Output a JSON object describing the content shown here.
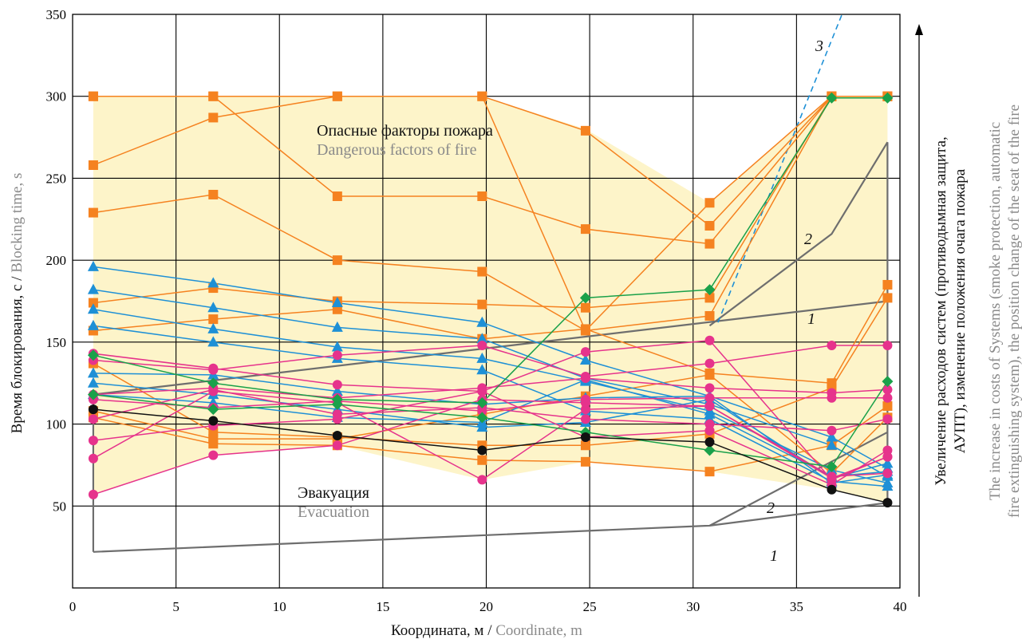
{
  "chart_data": {
    "type": "line",
    "xlim": [
      0,
      40
    ],
    "ylim": [
      0,
      350
    ],
    "x_ticks": [
      0,
      5,
      10,
      15,
      20,
      25,
      30,
      35,
      40
    ],
    "y_ticks": [
      50,
      100,
      150,
      200,
      250,
      300,
      350
    ],
    "grid": true,
    "xlabel": {
      "ru": "Координата, м",
      "sep": " / ",
      "en": "Coordinate, m"
    },
    "ylabel": {
      "ru": "Время блокирования, с",
      "sep": " / ",
      "en": "Blocking time, s"
    },
    "annotations": {
      "danger_ru": "Опасные факторы пожара",
      "danger_en": "Dangerous factors of fire",
      "evac_ru": "Эвакуация",
      "evac_en": "Evacuation",
      "right_ru_1": "Увеличение расходов  систем (противодымная защита,",
      "right_ru_2": "АУПТ), изменение положения очага пожара",
      "right_en_1": "The increase in costs of Systems (smoke protection, automatic",
      "right_en_2": "fire extinguishing system), the position change of the seat of the fire",
      "label_1": "1",
      "label_2": "2",
      "label_3": "3"
    },
    "colors": {
      "band": "#fdf4c9",
      "orange": "#f58220",
      "blue": "#1e90d6",
      "magenta": "#e6338c",
      "green": "#1aa14a",
      "black": "#111111",
      "grey_line": "#6e6e6e",
      "dashed": "#1e90d6"
    },
    "band": {
      "upper": [
        [
          1,
          300
        ],
        [
          6.8,
          300
        ],
        [
          12.8,
          300
        ],
        [
          19.8,
          300
        ],
        [
          24.8,
          280
        ],
        [
          30.8,
          235
        ],
        [
          36.7,
          300
        ],
        [
          39.4,
          300
        ],
        [
          39.4,
          52
        ],
        [
          36.7,
          60
        ],
        [
          30.8,
          71
        ],
        [
          24.8,
          77
        ],
        [
          19.8,
          66
        ],
        [
          12.8,
          87
        ],
        [
          6.8,
          81
        ],
        [
          1,
          57
        ]
      ]
    },
    "series": [
      {
        "color": "orange",
        "marker": "square",
        "points": [
          [
            1,
            300
          ],
          [
            6.8,
            300
          ],
          [
            12.8,
            239
          ],
          [
            19.8,
            239
          ],
          [
            24.8,
            219
          ],
          [
            30.8,
            210
          ],
          [
            36.7,
            300
          ],
          [
            39.4,
            300
          ]
        ]
      },
      {
        "color": "orange",
        "marker": "square",
        "points": [
          [
            1,
            300
          ],
          [
            6.8,
            300
          ],
          [
            12.8,
            300
          ],
          [
            19.8,
            300
          ],
          [
            24.8,
            279
          ],
          [
            30.8,
            221
          ],
          [
            36.7,
            300
          ],
          [
            39.4,
            300
          ]
        ]
      },
      {
        "color": "orange",
        "marker": "square",
        "points": [
          [
            1,
            258
          ],
          [
            6.8,
            287
          ],
          [
            12.8,
            300
          ],
          [
            19.8,
            300
          ],
          [
            24.8,
            157
          ],
          [
            30.8,
            235
          ],
          [
            36.7,
            300
          ],
          [
            39.4,
            300
          ]
        ]
      },
      {
        "color": "orange",
        "marker": "square",
        "points": [
          [
            1,
            229
          ],
          [
            6.8,
            240
          ],
          [
            12.8,
            200
          ],
          [
            19.8,
            193
          ],
          [
            24.8,
            157
          ],
          [
            30.8,
            166
          ],
          [
            36.7,
            300
          ],
          [
            39.4,
            300
          ]
        ]
      },
      {
        "color": "orange",
        "marker": "square",
        "points": [
          [
            1,
            174
          ],
          [
            6.8,
            183
          ],
          [
            12.8,
            175
          ],
          [
            19.8,
            173
          ],
          [
            24.8,
            171
          ],
          [
            30.8,
            177
          ],
          [
            36.7,
            300
          ],
          [
            39.4,
            300
          ]
        ]
      },
      {
        "color": "orange",
        "marker": "square",
        "points": [
          [
            1,
            157
          ],
          [
            6.8,
            164
          ],
          [
            12.8,
            170
          ],
          [
            19.8,
            152
          ],
          [
            24.8,
            158
          ],
          [
            30.8,
            131
          ],
          [
            36.7,
            125
          ],
          [
            39.4,
            185
          ]
        ]
      },
      {
        "color": "orange",
        "marker": "square",
        "points": [
          [
            1,
            137
          ],
          [
            6.8,
            95
          ],
          [
            12.8,
            92
          ],
          [
            19.8,
            87
          ],
          [
            24.8,
            87
          ],
          [
            30.8,
            94
          ],
          [
            36.7,
            122
          ],
          [
            39.4,
            177
          ]
        ]
      },
      {
        "color": "orange",
        "marker": "square",
        "points": [
          [
            1,
            104
          ],
          [
            6.8,
            88
          ],
          [
            12.8,
            87
          ],
          [
            19.8,
            78
          ],
          [
            24.8,
            77
          ],
          [
            30.8,
            71
          ],
          [
            36.7,
            87
          ],
          [
            39.4,
            111
          ]
        ]
      },
      {
        "color": "orange",
        "marker": "square",
        "points": [
          [
            1,
            108
          ],
          [
            6.8,
            91
          ],
          [
            12.8,
            91
          ],
          [
            19.8,
            106
          ],
          [
            24.8,
            117
          ],
          [
            30.8,
            130
          ],
          [
            36.7,
            70
          ],
          [
            39.4,
            104
          ]
        ]
      },
      {
        "color": "blue",
        "marker": "triangle",
        "points": [
          [
            1,
            196
          ],
          [
            6.8,
            186
          ],
          [
            12.8,
            174
          ],
          [
            19.8,
            162
          ],
          [
            24.8,
            139
          ],
          [
            30.8,
            117
          ],
          [
            36.7,
            92
          ],
          [
            39.4,
            73
          ]
        ]
      },
      {
        "color": "blue",
        "marker": "triangle",
        "points": [
          [
            1,
            182
          ],
          [
            6.8,
            171
          ],
          [
            12.8,
            159
          ],
          [
            19.8,
            152
          ],
          [
            24.8,
            128
          ],
          [
            30.8,
            112
          ],
          [
            36.7,
            87
          ],
          [
            39.4,
            68
          ]
        ]
      },
      {
        "color": "blue",
        "marker": "triangle",
        "points": [
          [
            1,
            170
          ],
          [
            6.8,
            158
          ],
          [
            12.8,
            147
          ],
          [
            19.8,
            140
          ],
          [
            24.8,
            126
          ],
          [
            30.8,
            108
          ],
          [
            36.7,
            72
          ],
          [
            39.4,
            64
          ]
        ]
      },
      {
        "color": "blue",
        "marker": "triangle",
        "points": [
          [
            1,
            160
          ],
          [
            6.8,
            150
          ],
          [
            12.8,
            140
          ],
          [
            19.8,
            133
          ],
          [
            24.8,
            108
          ],
          [
            30.8,
            103
          ],
          [
            36.7,
            65
          ],
          [
            39.4,
            62
          ]
        ]
      },
      {
        "color": "blue",
        "marker": "triangle",
        "points": [
          [
            1,
            131
          ],
          [
            6.8,
            130
          ],
          [
            12.8,
            120
          ],
          [
            19.8,
            112
          ],
          [
            24.8,
            116
          ],
          [
            30.8,
            117
          ],
          [
            36.7,
            64
          ],
          [
            39.4,
            69
          ]
        ]
      },
      {
        "color": "blue",
        "marker": "triangle",
        "points": [
          [
            1,
            125
          ],
          [
            6.8,
            118
          ],
          [
            12.8,
            109
          ],
          [
            19.8,
            98
          ],
          [
            24.8,
            101
          ],
          [
            30.8,
            115
          ],
          [
            36.7,
            67
          ],
          [
            39.4,
            76
          ]
        ]
      },
      {
        "color": "blue",
        "marker": "triangle",
        "points": [
          [
            1,
            118
          ],
          [
            6.8,
            113
          ],
          [
            12.8,
            104
          ],
          [
            19.8,
            101
          ],
          [
            24.8,
            127
          ],
          [
            30.8,
            106
          ],
          [
            36.7,
            68
          ],
          [
            39.4,
            71
          ]
        ]
      },
      {
        "color": "magenta",
        "marker": "circle",
        "points": [
          [
            1,
            143
          ],
          [
            6.8,
            134
          ],
          [
            12.8,
            124
          ],
          [
            19.8,
            120
          ],
          [
            24.8,
            144
          ],
          [
            30.8,
            151
          ],
          [
            36.7,
            66
          ],
          [
            39.4,
            80
          ]
        ]
      },
      {
        "color": "magenta",
        "marker": "circle",
        "points": [
          [
            1,
            139
          ],
          [
            6.8,
            133
          ],
          [
            12.8,
            142
          ],
          [
            19.8,
            148
          ],
          [
            24.8,
            129
          ],
          [
            30.8,
            137
          ],
          [
            36.7,
            148
          ],
          [
            39.4,
            148
          ]
        ]
      },
      {
        "color": "magenta",
        "marker": "circle",
        "points": [
          [
            1,
            118
          ],
          [
            6.8,
            122
          ],
          [
            12.8,
            116
          ],
          [
            19.8,
            122
          ],
          [
            24.8,
            128
          ],
          [
            30.8,
            122
          ],
          [
            36.7,
            119
          ],
          [
            39.4,
            121
          ]
        ]
      },
      {
        "color": "magenta",
        "marker": "circle",
        "points": [
          [
            1,
            115
          ],
          [
            6.8,
            110
          ],
          [
            12.8,
            114
          ],
          [
            19.8,
            108
          ],
          [
            24.8,
            115
          ],
          [
            30.8,
            116
          ],
          [
            36.7,
            116
          ],
          [
            39.4,
            116
          ]
        ]
      },
      {
        "color": "magenta",
        "marker": "circle",
        "points": [
          [
            1,
            103
          ],
          [
            6.8,
            121
          ],
          [
            12.8,
            106
          ],
          [
            19.8,
            110
          ],
          [
            24.8,
            103
          ],
          [
            30.8,
            100
          ],
          [
            36.7,
            96
          ],
          [
            39.4,
            103
          ]
        ]
      },
      {
        "color": "magenta",
        "marker": "circle",
        "points": [
          [
            1,
            90
          ],
          [
            6.8,
            99
          ],
          [
            12.8,
            103
          ],
          [
            19.8,
            120
          ],
          [
            24.8,
            92
          ],
          [
            30.8,
            96
          ],
          [
            36.7,
            63
          ],
          [
            39.4,
            84
          ]
        ]
      },
      {
        "color": "magenta",
        "marker": "circle",
        "points": [
          [
            1,
            79
          ],
          [
            6.8,
            120
          ],
          [
            12.8,
            113
          ],
          [
            19.8,
            66
          ],
          [
            24.8,
            109
          ],
          [
            30.8,
            111
          ],
          [
            36.7,
            67
          ],
          [
            39.4,
            80
          ]
        ]
      },
      {
        "color": "magenta",
        "marker": "circle",
        "points": [
          [
            1,
            57
          ],
          [
            6.8,
            81
          ],
          [
            12.8,
            87
          ],
          [
            19.8,
            115
          ],
          [
            24.8,
            113
          ],
          [
            30.8,
            111
          ],
          [
            36.7,
            68
          ],
          [
            39.4,
            70
          ]
        ]
      },
      {
        "color": "green",
        "marker": "diamond",
        "points": [
          [
            1,
            142
          ],
          [
            6.8,
            125
          ],
          [
            12.8,
            115
          ],
          [
            19.8,
            113
          ],
          [
            24.8,
            177
          ],
          [
            30.8,
            182
          ],
          [
            36.7,
            299
          ],
          [
            39.4,
            299
          ]
        ]
      },
      {
        "color": "green",
        "marker": "diamond",
        "points": [
          [
            1,
            118
          ],
          [
            6.8,
            109
          ],
          [
            12.8,
            112
          ],
          [
            19.8,
            104
          ],
          [
            24.8,
            95
          ],
          [
            30.8,
            84
          ],
          [
            36.7,
            74
          ],
          [
            39.4,
            126
          ]
        ]
      },
      {
        "color": "black",
        "marker": "circle",
        "points": [
          [
            1,
            109
          ],
          [
            6.8,
            102
          ],
          [
            12.8,
            93
          ],
          [
            19.8,
            84
          ],
          [
            24.8,
            92
          ],
          [
            30.8,
            89
          ],
          [
            36.7,
            60
          ],
          [
            39.4,
            52
          ]
        ]
      }
    ],
    "grey_lines": [
      {
        "label": "1",
        "points": [
          [
            1,
            118
          ],
          [
            39.4,
            175
          ]
        ]
      },
      {
        "label": "2",
        "points": [
          [
            30.8,
            160
          ],
          [
            36.7,
            216
          ],
          [
            39.4,
            272
          ]
        ]
      },
      {
        "label": "evac-1",
        "points": [
          [
            1,
            22
          ],
          [
            30.8,
            38
          ],
          [
            39.4,
            52
          ]
        ]
      },
      {
        "label": "evac-2",
        "points": [
          [
            30.8,
            38
          ],
          [
            39.4,
            95
          ]
        ]
      }
    ],
    "dashed_line": {
      "label": "3",
      "points": [
        [
          31.2,
          162
        ],
        [
          37.2,
          350
        ]
      ]
    }
  }
}
